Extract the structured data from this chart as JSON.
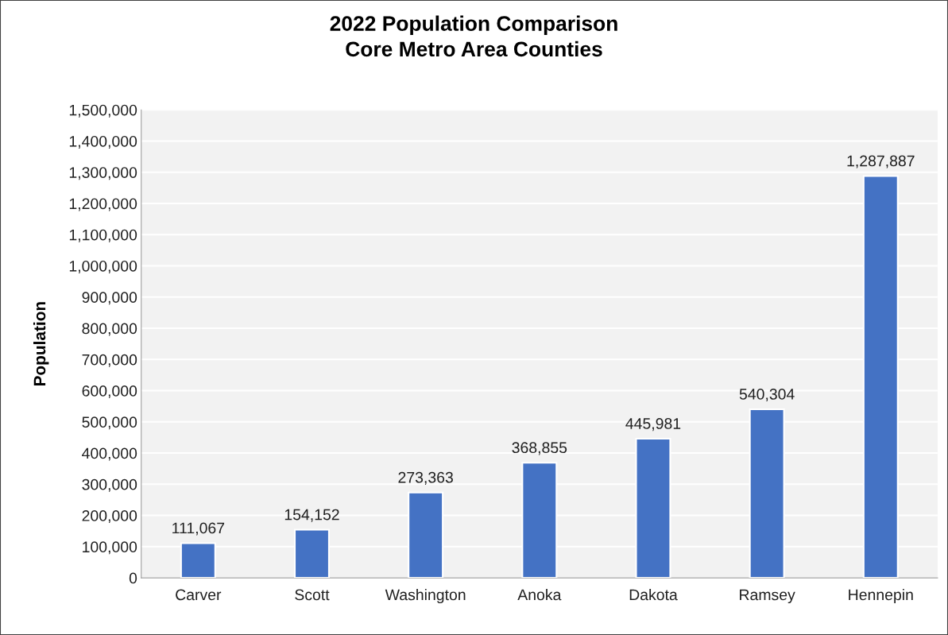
{
  "chart_data": {
    "type": "bar",
    "title": "2022 Population Comparison\nCore Metro Area Counties",
    "ylabel": "Population",
    "categories": [
      "Carver",
      "Scott",
      "Washington",
      "Anoka",
      "Dakota",
      "Ramsey",
      "Hennepin"
    ],
    "values": [
      111067,
      154152,
      273363,
      368855,
      445981,
      540304,
      1287887
    ],
    "value_labels": [
      "111,067",
      "154,152",
      "273,363",
      "368,855",
      "445,981",
      "540,304",
      "1,287,887"
    ],
    "color": "#4472c4",
    "ylim": [
      0,
      1500000
    ],
    "yticks": [
      {
        "value": 0,
        "label": "0"
      },
      {
        "value": 100000,
        "label": "100,000"
      },
      {
        "value": 200000,
        "label": "200,000"
      },
      {
        "value": 300000,
        "label": "300,000"
      },
      {
        "value": 400000,
        "label": "400,000"
      },
      {
        "value": 500000,
        "label": "500,000"
      },
      {
        "value": 600000,
        "label": "600,000"
      },
      {
        "value": 700000,
        "label": "700,000"
      },
      {
        "value": 800000,
        "label": "800,000"
      },
      {
        "value": 900000,
        "label": "900,000"
      },
      {
        "value": 1000000,
        "label": "1,000,000"
      },
      {
        "value": 1100000,
        "label": "1,100,000"
      },
      {
        "value": 1200000,
        "label": "1,200,000"
      },
      {
        "value": 1300000,
        "label": "1,300,000"
      },
      {
        "value": 1400000,
        "label": "1,400,000"
      },
      {
        "value": 1500000,
        "label": "1,500,000"
      }
    ],
    "grid": "y"
  }
}
